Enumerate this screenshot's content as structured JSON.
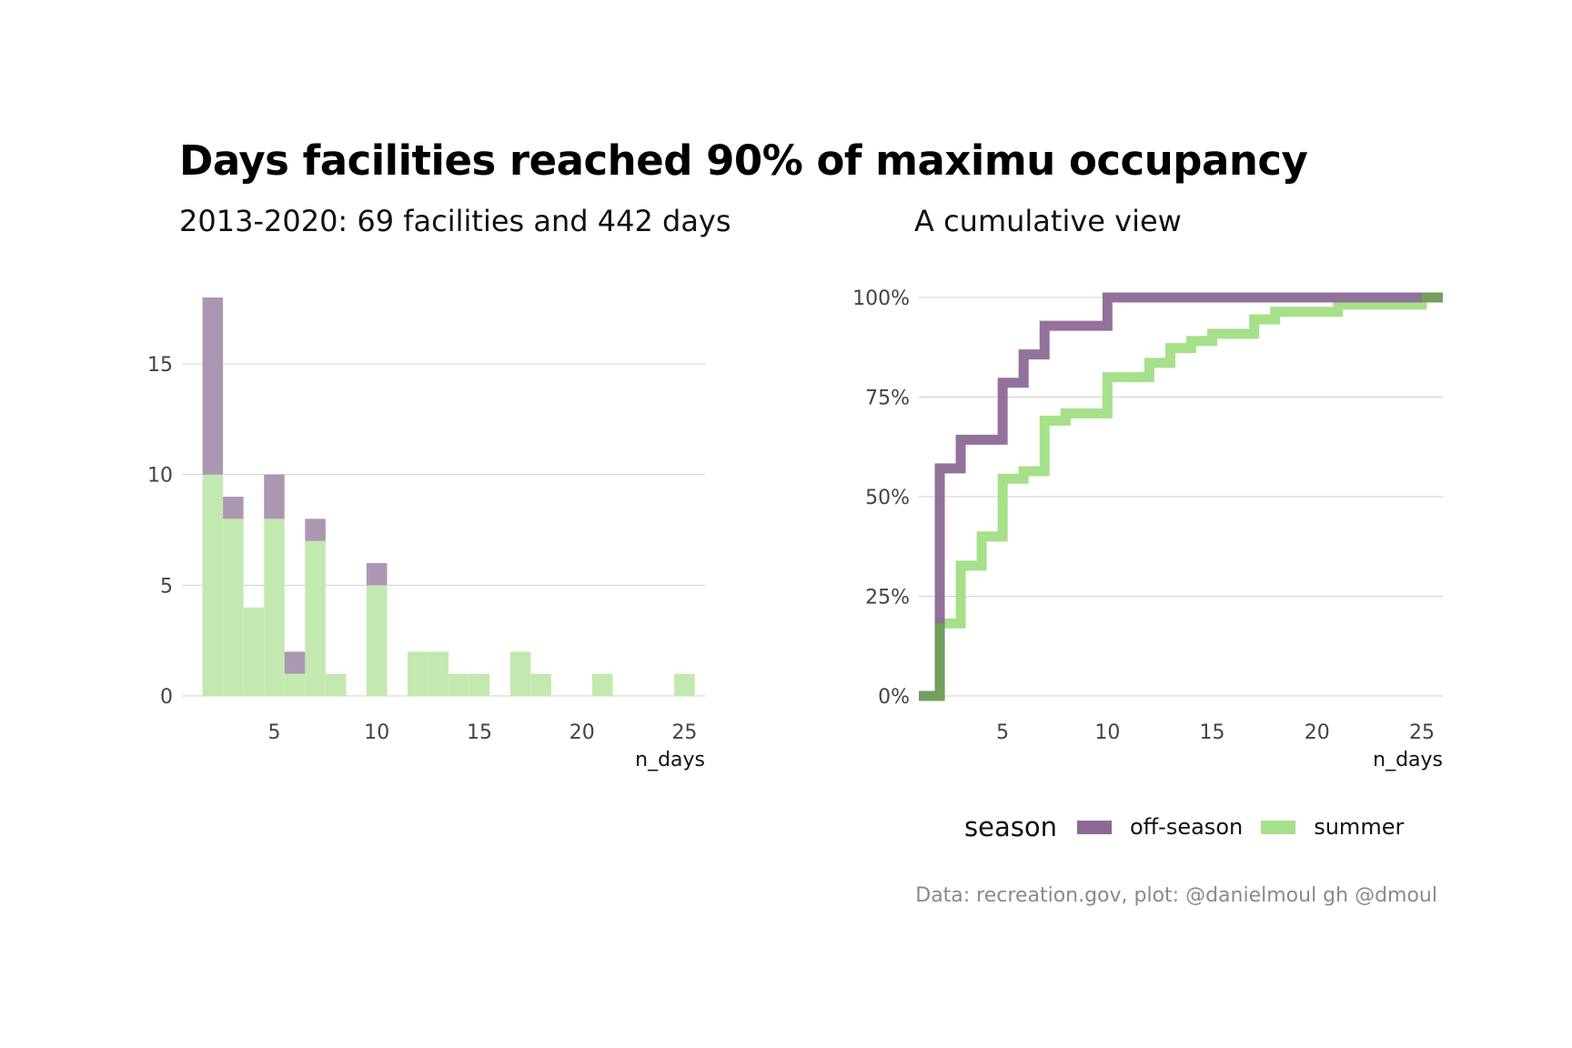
{
  "title": "Days facilities reached 90% of maximu occupancy",
  "caption": "Data: recreation.gov, plot: @danielmoul gh @dmoul",
  "legend": {
    "title": "season",
    "items": [
      {
        "label": "off-season",
        "color": "#8c6a96"
      },
      {
        "label": "summer",
        "color": "#a6e08a"
      }
    ]
  },
  "chart_data": [
    {
      "type": "bar",
      "subtitle": "2013-2020: 69 facilities and 442 days",
      "xlabel": "n_days",
      "ylabel": "",
      "xlim": [
        0.5,
        26
      ],
      "ylim": [
        0,
        18
      ],
      "xticks": [
        5,
        10,
        15,
        20,
        25
      ],
      "yticks": [
        0,
        5,
        10,
        15
      ],
      "stacked": true,
      "grid": "horizontal",
      "categories": [
        2,
        3,
        4,
        5,
        6,
        7,
        8,
        9,
        10,
        11,
        12,
        13,
        14,
        15,
        16,
        17,
        18,
        19,
        20,
        21,
        22,
        23,
        24,
        25
      ],
      "series": [
        {
          "name": "summer",
          "color": "#c3e9b0",
          "values": [
            10,
            8,
            4,
            8,
            1,
            7,
            1,
            0,
            5,
            0,
            2,
            2,
            1,
            1,
            0,
            2,
            1,
            0,
            0,
            1,
            0,
            0,
            0,
            1
          ]
        },
        {
          "name": "off-season",
          "color": "#ac97b3",
          "values": [
            8,
            1,
            0,
            2,
            1,
            1,
            0,
            0,
            1,
            0,
            0,
            0,
            0,
            0,
            0,
            0,
            0,
            0,
            0,
            0,
            0,
            0,
            0,
            0
          ]
        }
      ]
    },
    {
      "type": "line",
      "step": true,
      "subtitle": "A cumulative view",
      "xlabel": "n_days",
      "ylabel": "",
      "xlim": [
        1,
        26
      ],
      "ylim": [
        0,
        1
      ],
      "xticks": [
        5,
        10,
        15,
        20,
        25
      ],
      "yticks": [
        "0%",
        "25%",
        "50%",
        "75%",
        "100%"
      ],
      "grid": "horizontal",
      "series": [
        {
          "name": "off-season",
          "color": "#8c6a96",
          "x": [
            1,
            2,
            3,
            5,
            6,
            7,
            10,
            25
          ],
          "y": [
            0,
            0.571,
            0.643,
            0.786,
            0.857,
            0.929,
            1.0,
            1.0
          ]
        },
        {
          "name": "summer",
          "color": "#a6e08a",
          "x": [
            1,
            2,
            3,
            4,
            5,
            6,
            7,
            8,
            10,
            12,
            13,
            14,
            15,
            17,
            18,
            21,
            25,
            26
          ],
          "y": [
            0,
            0.182,
            0.327,
            0.4,
            0.545,
            0.564,
            0.691,
            0.709,
            0.8,
            0.836,
            0.873,
            0.891,
            0.909,
            0.945,
            0.964,
            0.982,
            1.0,
            1.0
          ]
        }
      ]
    }
  ]
}
